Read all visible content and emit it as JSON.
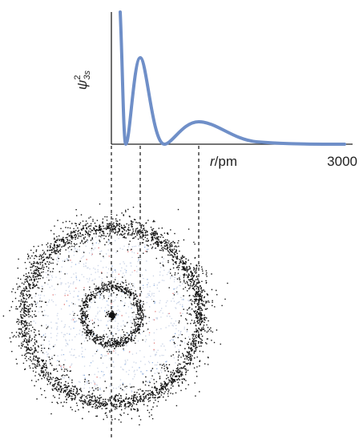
{
  "axis": {
    "y_label": "ψ",
    "y_sup": "2",
    "y_sub": "3s",
    "x_label_var": "r",
    "x_label_unit": "/pm",
    "x_end": "3000"
  }
}
